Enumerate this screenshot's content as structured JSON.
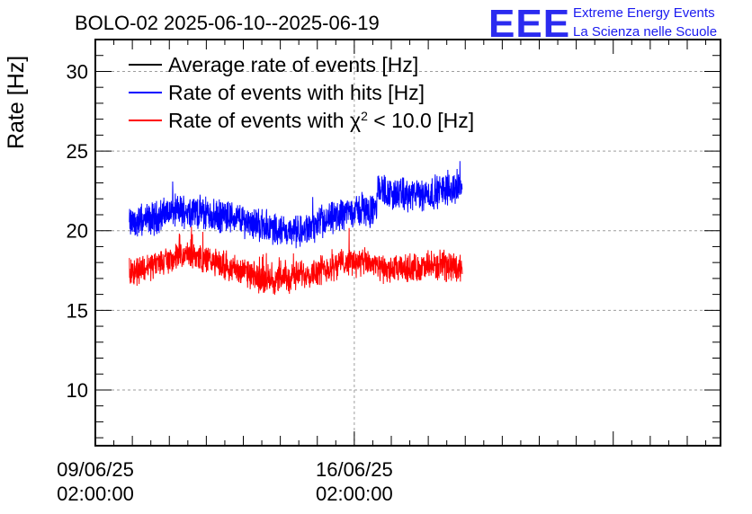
{
  "chart_data": {
    "type": "line",
    "title": "BOLO-02 2025-06-10--2025-06-19",
    "ylabel": "Rate [Hz]",
    "xlabel": "",
    "ylim": [
      6.5,
      32
    ],
    "yticks": [
      10,
      15,
      20,
      25,
      30
    ],
    "xlim": [
      0,
      16.9
    ],
    "x_unit": "days since 09/06/25 02:00:00",
    "x_ticks": [
      {
        "value": 0,
        "date": "09/06/25",
        "time": "02:00:00"
      },
      {
        "value": 7,
        "date": "16/06/25",
        "time": "02:00:00"
      }
    ],
    "grid": true,
    "legend_position": "top-left",
    "series": [
      {
        "name": "Average rate of events [Hz]",
        "name_prefix": "Average rate of events [Hz]",
        "name_symbol": "",
        "name_sup": "",
        "name_suffix": "",
        "color": "#000000",
        "noise": 0,
        "x": [],
        "y": []
      },
      {
        "name": "Rate of events with hits [Hz]",
        "name_prefix": "Rate of events with hits [Hz]",
        "name_symbol": "",
        "name_sup": "",
        "name_suffix": "",
        "color": "#0000ff",
        "noise": 0.85,
        "x": [
          0.92,
          1.5,
          2.0,
          2.6,
          3.2,
          3.8,
          4.4,
          5.0,
          5.6,
          6.2,
          6.8,
          7.2,
          7.6,
          7.62,
          8.0,
          8.5,
          9.0,
          9.5,
          9.92
        ],
        "y": [
          20.4,
          20.7,
          21.2,
          21.3,
          20.9,
          20.8,
          20.4,
          20.0,
          19.9,
          20.5,
          21.2,
          21.3,
          21.2,
          22.7,
          22.3,
          22.2,
          22.3,
          22.6,
          22.8
        ]
      },
      {
        "name": "Rate of events with χ² < 10.0 [Hz]",
        "name_prefix": "Rate of events with ",
        "name_symbol": "χ",
        "name_sup": "2",
        "name_suffix": " < 10.0 [Hz]",
        "color": "#ff0000",
        "noise": 0.75,
        "x": [
          0.92,
          1.5,
          2.0,
          2.6,
          3.2,
          3.8,
          4.4,
          5.0,
          5.6,
          6.2,
          6.8,
          7.2,
          7.6,
          7.62,
          8.0,
          8.5,
          9.0,
          9.5,
          9.92
        ],
        "y": [
          17.4,
          17.8,
          18.2,
          18.5,
          18.0,
          17.6,
          17.0,
          16.9,
          17.3,
          17.6,
          18.1,
          18.0,
          17.9,
          17.6,
          17.5,
          17.6,
          17.7,
          17.8,
          17.7
        ]
      }
    ]
  },
  "logo": {
    "mark": "EEE",
    "line1": "Extreme Energy Events",
    "line2": "La Scienza nelle Scuole",
    "color": "#2b2bf0"
  }
}
